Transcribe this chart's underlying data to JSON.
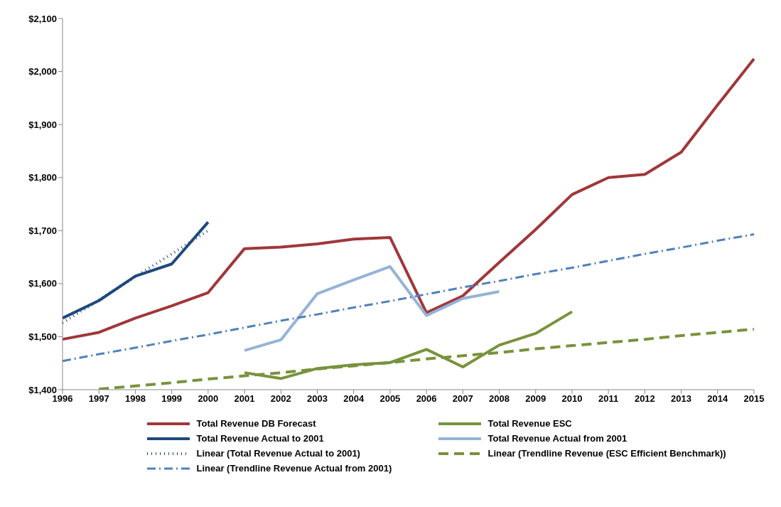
{
  "chart_data": {
    "type": "line",
    "categories": [
      "1996",
      "1997",
      "1998",
      "1999",
      "2000",
      "2001",
      "2002",
      "2003",
      "2004",
      "2005",
      "2006",
      "2007",
      "2008",
      "2009",
      "2010",
      "2011",
      "2012",
      "2013",
      "2014",
      "2015"
    ],
    "ylim": [
      1400,
      2100
    ],
    "yticks": [
      {
        "value": 1400,
        "label": "$1,400"
      },
      {
        "value": 1500,
        "label": "$1,500"
      },
      {
        "value": 1600,
        "label": "$1,600"
      },
      {
        "value": 1700,
        "label": "$1,700"
      },
      {
        "value": 1800,
        "label": "$1,800"
      },
      {
        "value": 1900,
        "label": "$1,900"
      },
      {
        "value": 2000,
        "label": "$2,000"
      },
      {
        "value": 2100,
        "label": "$2,100"
      }
    ],
    "grid": false,
    "legend": "bottom",
    "marker": "none",
    "series": [
      {
        "name": "Total Revenue DB Forecast",
        "color": "#a0373a",
        "line_style": "solid",
        "values": [
          1495,
          1508,
          1535,
          1558,
          1583,
          1666,
          1669,
          1675,
          1684,
          1687,
          1545,
          1577,
          1640,
          1702,
          1768,
          1800,
          1806,
          1848,
          1937,
          2024
        ]
      },
      {
        "name": "Total Revenue ESC",
        "color": "#77933c",
        "line_style": "solid",
        "values": [
          null,
          null,
          null,
          null,
          null,
          1432,
          1421,
          1440,
          1447,
          1451,
          1476,
          1443,
          1484,
          1506,
          1547,
          null,
          null,
          null,
          null,
          null
        ]
      },
      {
        "name": "Total Revenue Actual to 2001",
        "color": "#1f497d",
        "line_style": "solid",
        "values": [
          1535,
          1568,
          1614,
          1637,
          1716,
          null,
          null,
          null,
          null,
          null,
          null,
          null,
          null,
          null,
          null,
          null,
          null,
          null,
          null,
          null
        ]
      },
      {
        "name": "Total Revenue Actual from 2001",
        "color": "#95b3d7",
        "line_style": "solid",
        "values": [
          null,
          null,
          null,
          null,
          null,
          1474,
          1494,
          1581,
          1607,
          1632,
          1540,
          1572,
          1585,
          null,
          null,
          null,
          null,
          null,
          null,
          null
        ]
      },
      {
        "name": "Linear (Total Revenue Actual to 2001)",
        "color": "#1f497d",
        "line_style": "dotted",
        "values": [
          1526,
          1569,
          1613,
          1656,
          1700,
          null,
          null,
          null,
          null,
          null,
          null,
          null,
          null,
          null,
          null,
          null,
          null,
          null,
          null,
          null
        ]
      },
      {
        "name": "Linear (Trendline Revenue (ESC Efficient Benchmark))",
        "color": "#77933c",
        "line_style": "dashed",
        "values": [
          null,
          1401,
          1407,
          1413,
          1420,
          1426,
          1432,
          1439,
          1445,
          1451,
          1458,
          1464,
          1470,
          1477,
          1483,
          1489,
          1495,
          1502,
          1508,
          1514
        ]
      },
      {
        "name": "Linear (Trendline Revenue Actual from 2001)",
        "color": "#4f81bd",
        "line_style": "dashdot",
        "values": [
          1454,
          1467,
          1479,
          1492,
          1504,
          1517,
          1530,
          1542,
          1555,
          1567,
          1580,
          1593,
          1605,
          1618,
          1630,
          1643,
          1656,
          1668,
          1681,
          1693
        ]
      }
    ]
  }
}
